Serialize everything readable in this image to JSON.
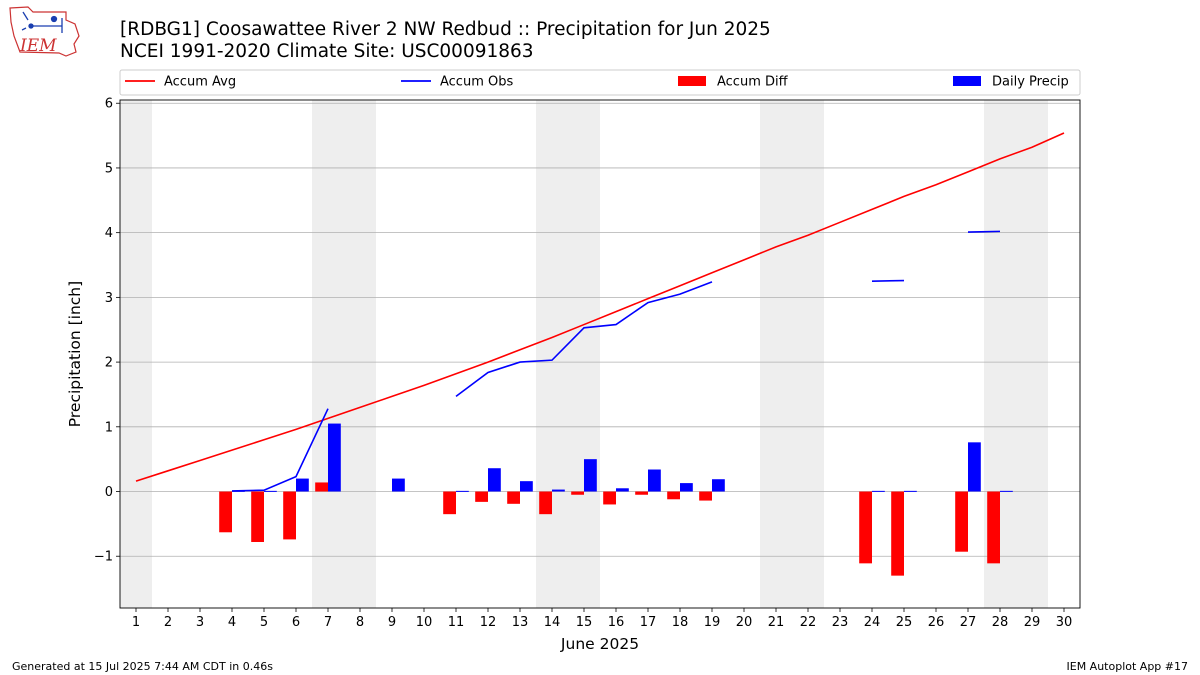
{
  "header": {
    "logo_text": "IEM",
    "title_line1": "[RDBG1] Coosawattee River 2 NW Redbud :: Precipitation for Jun 2025",
    "title_line2": "NCEI 1991-2020 Climate Site: USC00091863"
  },
  "footer": {
    "left": "Generated at 15 Jul 2025 7:44 AM CDT in 0.46s",
    "right": "IEM Autoplot App #17"
  },
  "chart_data": {
    "type": "bar",
    "xlabel": "June 2025",
    "ylabel": "Precipitation [inch]",
    "xlim": [
      0.5,
      30.5
    ],
    "ylim": [
      -1.8,
      6.05
    ],
    "x_ticks": [
      1,
      2,
      3,
      4,
      5,
      6,
      7,
      8,
      9,
      10,
      11,
      12,
      13,
      14,
      15,
      16,
      17,
      18,
      19,
      20,
      21,
      22,
      23,
      24,
      25,
      26,
      27,
      28,
      29,
      30
    ],
    "y_ticks": [
      -1,
      0,
      1,
      2,
      3,
      4,
      5,
      6
    ],
    "grid": "horizontal",
    "legend_placement": "top",
    "weekend_shading": [
      [
        0.5,
        1.5
      ],
      [
        6.5,
        8.5
      ],
      [
        13.5,
        15.5
      ],
      [
        20.5,
        22.5
      ],
      [
        27.5,
        29.5
      ]
    ],
    "colors": {
      "accum_avg": "#ff0000",
      "accum_obs": "#0000ff",
      "accum_diff": "#ff0000",
      "daily_precip": "#0000ff",
      "weekend": "#eeeeee",
      "grid": "#b0b0b0"
    },
    "legend": [
      {
        "key": "accum_avg",
        "label": "Accum Avg",
        "kind": "line"
      },
      {
        "key": "accum_obs",
        "label": "Accum Obs",
        "kind": "line"
      },
      {
        "key": "accum_diff",
        "label": "Accum Diff",
        "kind": "bar"
      },
      {
        "key": "daily_precip",
        "label": "Daily Precip",
        "kind": "bar"
      }
    ],
    "days": [
      1,
      2,
      3,
      4,
      5,
      6,
      7,
      8,
      9,
      10,
      11,
      12,
      13,
      14,
      15,
      16,
      17,
      18,
      19,
      20,
      21,
      22,
      23,
      24,
      25,
      26,
      27,
      28,
      29,
      30
    ],
    "accum_avg": [
      0.16,
      0.32,
      0.48,
      0.64,
      0.8,
      0.96,
      1.13,
      1.3,
      1.47,
      1.64,
      1.82,
      2.0,
      2.19,
      2.38,
      2.58,
      2.78,
      2.98,
      3.18,
      3.38,
      3.58,
      3.78,
      3.96,
      4.16,
      4.36,
      4.56,
      4.74,
      4.94,
      5.14,
      5.32,
      5.54
    ],
    "accum_obs": [
      null,
      null,
      null,
      0.01,
      0.02,
      0.23,
      1.28,
      null,
      null,
      null,
      1.47,
      1.84,
      2.0,
      2.03,
      2.53,
      2.58,
      2.92,
      3.05,
      3.24,
      null,
      null,
      null,
      null,
      3.25,
      3.26,
      null,
      4.01,
      4.02,
      null,
      null
    ],
    "accum_diff": [
      null,
      null,
      null,
      -0.63,
      -0.78,
      -0.74,
      0.14,
      null,
      null,
      null,
      -0.35,
      -0.16,
      -0.19,
      -0.35,
      -0.05,
      -0.2,
      -0.05,
      -0.12,
      -0.14,
      null,
      null,
      null,
      null,
      -1.11,
      -1.3,
      null,
      -0.93,
      -1.11,
      null,
      null
    ],
    "daily_precip": [
      null,
      null,
      null,
      0.01,
      0.01,
      0.2,
      1.05,
      null,
      0.2,
      null,
      0.01,
      0.36,
      0.16,
      0.03,
      0.5,
      0.05,
      0.34,
      0.13,
      0.19,
      null,
      null,
      null,
      null,
      0.01,
      0.01,
      null,
      0.76,
      0.01,
      null,
      null
    ]
  }
}
